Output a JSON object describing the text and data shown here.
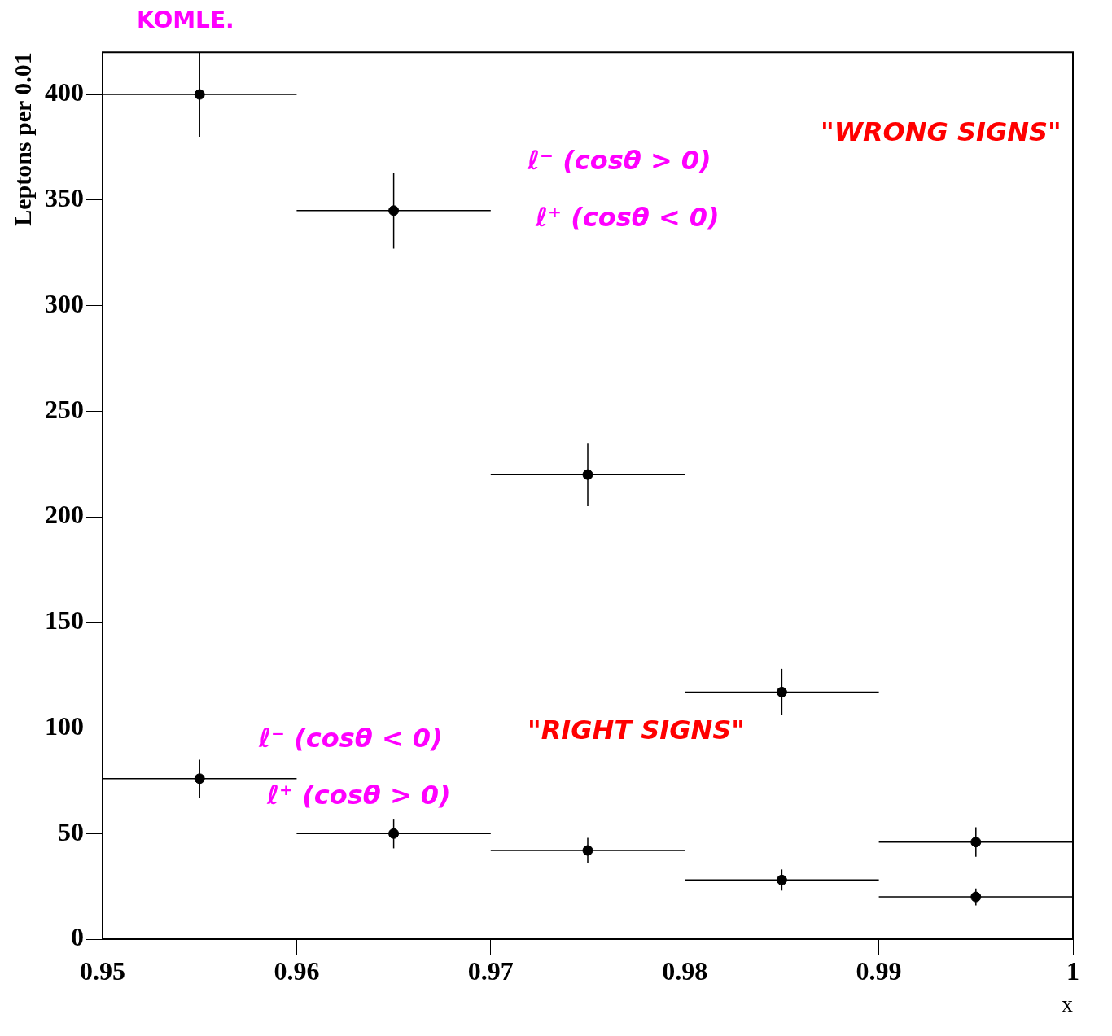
{
  "chart_data": {
    "type": "scatter",
    "xlabel": "x",
    "ylabel": "Leptons per 0.01",
    "xlim": [
      0.95,
      1
    ],
    "xticks": [
      0.95,
      0.96,
      0.97,
      0.98,
      0.99,
      1
    ],
    "ylim": [
      0,
      420
    ],
    "yticks": [
      0,
      50,
      100,
      150,
      200,
      250,
      300,
      350,
      400
    ],
    "grid": false,
    "legend": false,
    "marker": "circle",
    "series": [
      {
        "color": "#000000",
        "x": [
          0.955,
          0.965,
          0.975,
          0.985,
          0.995
        ],
        "values": [
          400,
          345,
          220,
          117,
          46
        ],
        "errors": [
          20,
          18,
          15,
          11,
          7
        ],
        "xerrors": [
          0.005,
          0.005,
          0.005,
          0.005,
          0.005
        ]
      },
      {
        "color": "#000000",
        "x": [
          0.955,
          0.965,
          0.975,
          0.985,
          0.995
        ],
        "values": [
          76,
          50,
          42,
          28,
          20
        ],
        "errors": [
          9,
          7,
          6,
          5,
          4
        ],
        "xerrors": [
          0.005,
          0.005,
          0.005,
          0.005,
          0.005
        ]
      }
    ],
    "annotations": [
      "KOMLE.",
      "ℓ⁻ (cosθ > 0)",
      "ℓ⁺ (cosθ < 0)",
      "\"WRONG SIGNS\"",
      "ℓ⁻ (cosθ < 0)",
      "ℓ⁺ (cosθ > 0)",
      "\"RIGHT SIGNS\""
    ]
  }
}
